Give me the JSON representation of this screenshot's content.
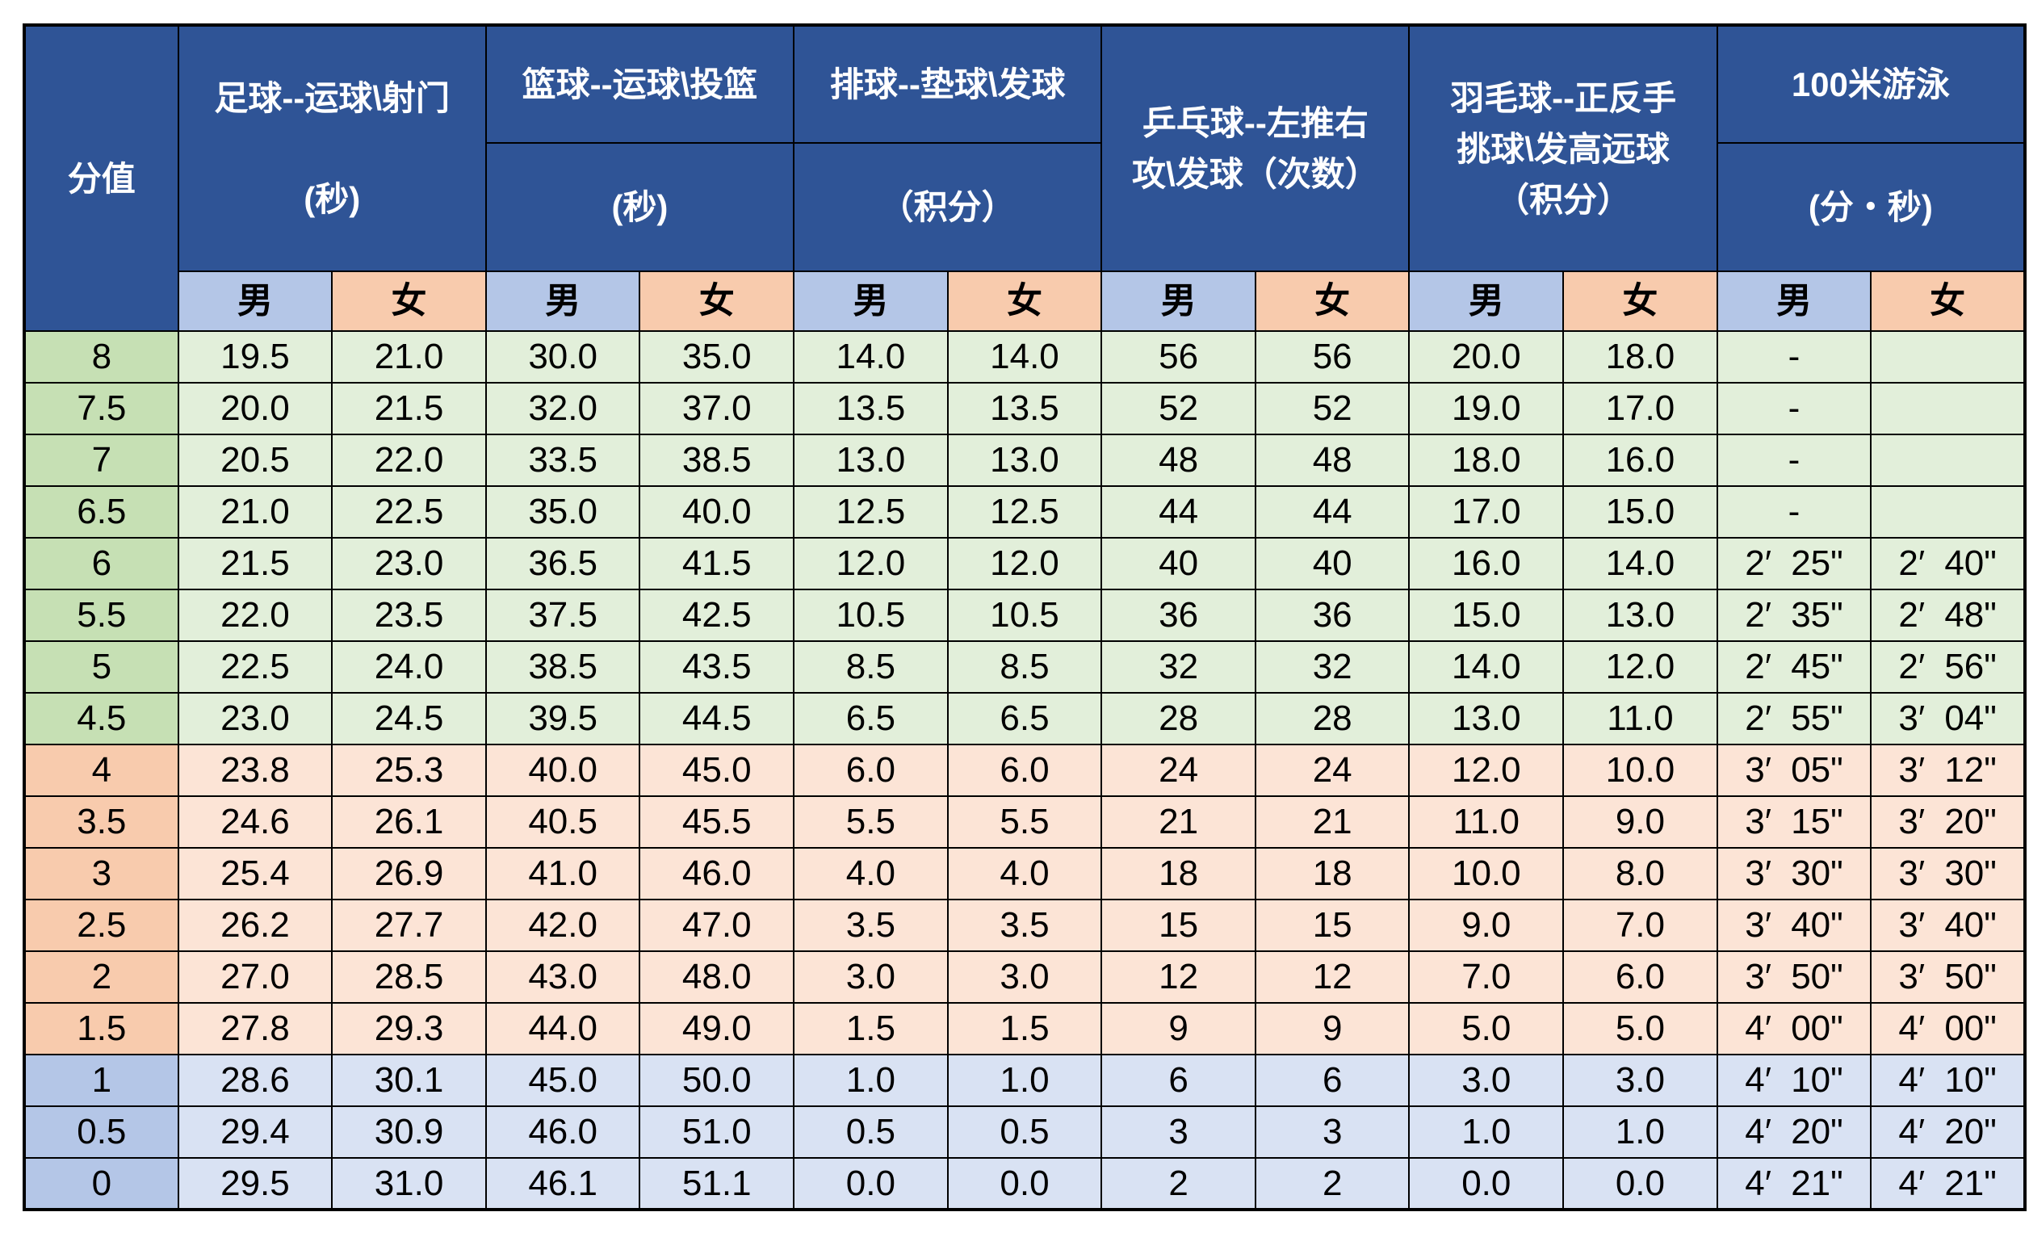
{
  "colors": {
    "header_bg": "#2F5496",
    "male_bg": "#B4C6E7",
    "female_bg": "#F8CBAD",
    "green_label": "#C6E0B4",
    "green_cell": "#E2EFDA",
    "orange_label": "#F8CBAD",
    "orange_cell": "#FCE4D6",
    "blue_label": "#B4C6E7",
    "blue_cell": "#D9E2F3",
    "grid_color": "#000000"
  },
  "chart_data": {
    "type": "table",
    "header": {
      "score": "分值",
      "male": "男",
      "female": "女",
      "groups": [
        {
          "id": "football",
          "lines": [
            "足球--运球\\射门",
            "(秒)"
          ]
        },
        {
          "id": "basketball",
          "title": "篮球--运球\\投篮",
          "unit": "(秒)"
        },
        {
          "id": "volleyball",
          "title": "排球--垫球\\发球",
          "unit": "（积分）"
        },
        {
          "id": "tabletennis",
          "lines": [
            "乒乓球--左推右",
            "攻\\发球（次数）"
          ]
        },
        {
          "id": "badminton",
          "lines": [
            "羽毛球--正反手",
            "挑球\\发高远球",
            "（积分）"
          ]
        },
        {
          "id": "swimming",
          "title": "100米游泳",
          "unit": "(分・秒)"
        }
      ]
    },
    "rows": [
      {
        "score": "8",
        "band": "green",
        "values": [
          "19.5",
          "21.0",
          "30.0",
          "35.0",
          "14.0",
          "14.0",
          "56",
          "56",
          "20.0",
          "18.0",
          "-",
          ""
        ]
      },
      {
        "score": "7.5",
        "band": "green",
        "values": [
          "20.0",
          "21.5",
          "32.0",
          "37.0",
          "13.5",
          "13.5",
          "52",
          "52",
          "19.0",
          "17.0",
          "-",
          ""
        ]
      },
      {
        "score": "7",
        "band": "green",
        "values": [
          "20.5",
          "22.0",
          "33.5",
          "38.5",
          "13.0",
          "13.0",
          "48",
          "48",
          "18.0",
          "16.0",
          "-",
          ""
        ]
      },
      {
        "score": "6.5",
        "band": "green",
        "values": [
          "21.0",
          "22.5",
          "35.0",
          "40.0",
          "12.5",
          "12.5",
          "44",
          "44",
          "17.0",
          "15.0",
          "-",
          ""
        ]
      },
      {
        "score": "6",
        "band": "green",
        "values": [
          "21.5",
          "23.0",
          "36.5",
          "41.5",
          "12.0",
          "12.0",
          "40",
          "40",
          "16.0",
          "14.0",
          "2′ 25\"",
          "2′ 40\""
        ]
      },
      {
        "score": "5.5",
        "band": "green",
        "values": [
          "22.0",
          "23.5",
          "37.5",
          "42.5",
          "10.5",
          "10.5",
          "36",
          "36",
          "15.0",
          "13.0",
          "2′ 35\"",
          "2′ 48\""
        ]
      },
      {
        "score": "5",
        "band": "green",
        "values": [
          "22.5",
          "24.0",
          "38.5",
          "43.5",
          "8.5",
          "8.5",
          "32",
          "32",
          "14.0",
          "12.0",
          "2′ 45\"",
          "2′ 56\""
        ]
      },
      {
        "score": "4.5",
        "band": "green",
        "values": [
          "23.0",
          "24.5",
          "39.5",
          "44.5",
          "6.5",
          "6.5",
          "28",
          "28",
          "13.0",
          "11.0",
          "2′ 55\"",
          "3′ 04\""
        ]
      },
      {
        "score": "4",
        "band": "orange",
        "values": [
          "23.8",
          "25.3",
          "40.0",
          "45.0",
          "6.0",
          "6.0",
          "24",
          "24",
          "12.0",
          "10.0",
          "3′ 05\"",
          "3′ 12\""
        ]
      },
      {
        "score": "3.5",
        "band": "orange",
        "values": [
          "24.6",
          "26.1",
          "40.5",
          "45.5",
          "5.5",
          "5.5",
          "21",
          "21",
          "11.0",
          "9.0",
          "3′ 15\"",
          "3′ 20\""
        ]
      },
      {
        "score": "3",
        "band": "orange",
        "values": [
          "25.4",
          "26.9",
          "41.0",
          "46.0",
          "4.0",
          "4.0",
          "18",
          "18",
          "10.0",
          "8.0",
          "3′ 30\"",
          "3′ 30\""
        ]
      },
      {
        "score": "2.5",
        "band": "orange",
        "values": [
          "26.2",
          "27.7",
          "42.0",
          "47.0",
          "3.5",
          "3.5",
          "15",
          "15",
          "9.0",
          "7.0",
          "3′ 40\"",
          "3′ 40\""
        ]
      },
      {
        "score": "2",
        "band": "orange",
        "values": [
          "27.0",
          "28.5",
          "43.0",
          "48.0",
          "3.0",
          "3.0",
          "12",
          "12",
          "7.0",
          "6.0",
          "3′ 50\"",
          "3′ 50\""
        ]
      },
      {
        "score": "1.5",
        "band": "orange",
        "values": [
          "27.8",
          "29.3",
          "44.0",
          "49.0",
          "1.5",
          "1.5",
          "9",
          "9",
          "5.0",
          "5.0",
          "4′ 00\"",
          "4′ 00\""
        ]
      },
      {
        "score": "1",
        "band": "blue",
        "values": [
          "28.6",
          "30.1",
          "45.0",
          "50.0",
          "1.0",
          "1.0",
          "6",
          "6",
          "3.0",
          "3.0",
          "4′ 10\"",
          "4′ 10\""
        ]
      },
      {
        "score": "0.5",
        "band": "blue",
        "values": [
          "29.4",
          "30.9",
          "46.0",
          "51.0",
          "0.5",
          "0.5",
          "3",
          "3",
          "1.0",
          "1.0",
          "4′ 20\"",
          "4′ 20\""
        ]
      },
      {
        "score": "0",
        "band": "blue",
        "values": [
          "29.5",
          "31.0",
          "46.1",
          "51.1",
          "0.0",
          "0.0",
          "2",
          "2",
          "0.0",
          "0.0",
          "4′ 21\"",
          "4′ 21\""
        ]
      }
    ]
  }
}
